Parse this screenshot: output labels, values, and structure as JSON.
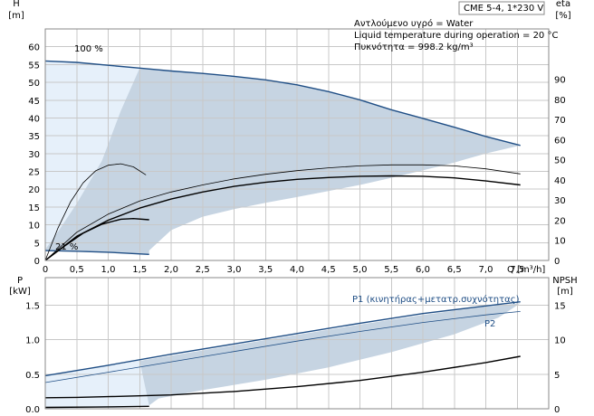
{
  "colors": {
    "band": "#c6d4e2",
    "band_light": "#e6f0fa",
    "curve_blue": "#1f4e85",
    "curve_black": "#000000",
    "grid": "#c8c8c8"
  },
  "info_box": {
    "title": "CME 5-4, 1*230 V",
    "lines": [
      "Αντλούμενο υγρό = Water",
      "Liquid temperature during operation = 20 °C",
      "Πυκνότητα = 998.2 kg/m³"
    ]
  },
  "chart_data": [
    {
      "type": "line",
      "panel": "head-efficiency",
      "x_title": "Q [m³/h]",
      "y_left_title": [
        "H",
        "[m]"
      ],
      "y_right_title": [
        "eta",
        "[%]"
      ],
      "xlim": [
        0,
        8
      ],
      "ylim_left": [
        0,
        65
      ],
      "ylim_right": [
        0,
        115
      ],
      "grid": true,
      "x_ticks": [
        0,
        0.5,
        1,
        1.5,
        2,
        2.5,
        3,
        3.5,
        4,
        4.5,
        5,
        5.5,
        6,
        6.5,
        7,
        7.5
      ],
      "x_tick_labels": [
        "0",
        "0,5",
        "1,0",
        "1,5",
        "2,0",
        "2,5",
        "3,0",
        "3,5",
        "4,0",
        "4,5",
        "5,0",
        "5,5",
        "6,0",
        "6,5",
        "7,0",
        "7,5"
      ],
      "y_left_ticks": [
        0,
        5,
        10,
        15,
        20,
        25,
        30,
        35,
        40,
        45,
        50,
        55,
        60
      ],
      "y_left_tick_labels": [
        "0",
        "5",
        "10",
        "15",
        "20",
        "25",
        "30",
        "35",
        "40",
        "45",
        "50",
        "55",
        "60"
      ],
      "y_right_ticks": [
        0,
        10,
        20,
        30,
        40,
        50,
        60,
        70,
        80,
        90
      ],
      "y_right_tick_labels": [
        "0",
        "10",
        "20",
        "30",
        "40",
        "50",
        "60",
        "70",
        "80",
        "90"
      ],
      "labels": {
        "max_speed": "100 %",
        "min_speed": "21 %"
      },
      "operating_range": {
        "upper": [
          [
            0,
            56
          ],
          [
            0.5,
            55.6
          ],
          [
            1.0,
            54.8
          ],
          [
            1.5,
            54
          ],
          [
            2.0,
            53.2
          ],
          [
            2.5,
            52.5
          ],
          [
            3.0,
            51.7
          ],
          [
            3.5,
            50.7
          ],
          [
            4.0,
            49.3
          ],
          [
            4.5,
            47.4
          ],
          [
            5.0,
            45.1
          ],
          [
            5.5,
            42.3
          ],
          [
            6.0,
            39.9
          ],
          [
            6.5,
            37.4
          ],
          [
            7.0,
            34.8
          ],
          [
            7.55,
            32.3
          ]
        ],
        "right": [
          [
            7.55,
            32.3
          ],
          [
            7.0,
            30
          ],
          [
            6.5,
            27.5
          ],
          [
            6.0,
            25.3
          ],
          [
            5.5,
            23.2
          ],
          [
            5.0,
            21.2
          ],
          [
            4.5,
            19.5
          ],
          [
            4.0,
            17.8
          ],
          [
            3.5,
            16.2
          ],
          [
            3.0,
            14.4
          ],
          [
            2.5,
            12.3
          ],
          [
            2.0,
            8.5
          ],
          [
            1.65,
            2.8
          ]
        ],
        "lower": [
          [
            1.65,
            2.8
          ],
          [
            1.65,
            1.6
          ],
          [
            1.2,
            2.2
          ],
          [
            0.5,
            2.8
          ],
          [
            0,
            3.1
          ]
        ],
        "light_wedge": [
          [
            0,
            56
          ],
          [
            1.5,
            54
          ],
          [
            1.2,
            42
          ],
          [
            0.9,
            28
          ],
          [
            0.5,
            16
          ],
          [
            0.2,
            8
          ],
          [
            0,
            3.1
          ]
        ]
      },
      "series": [
        {
          "color": "#1f4e85",
          "width": 1.4,
          "points": [
            [
              0,
              56
            ],
            [
              0.5,
              55.6
            ],
            [
              1.0,
              54.8
            ],
            [
              1.5,
              54
            ],
            [
              2.0,
              53.2
            ],
            [
              2.5,
              52.5
            ],
            [
              3.0,
              51.7
            ],
            [
              3.5,
              50.7
            ],
            [
              4.0,
              49.3
            ],
            [
              4.5,
              47.4
            ],
            [
              5.0,
              45.1
            ],
            [
              5.5,
              42.3
            ],
            [
              6.0,
              39.9
            ],
            [
              6.5,
              37.4
            ],
            [
              7.0,
              34.8
            ],
            [
              7.55,
              32.3
            ]
          ]
        },
        {
          "color": "#1f4e85",
          "width": 1.4,
          "points": [
            [
              0,
              2.8
            ],
            [
              0.5,
              2.6
            ],
            [
              1.0,
              2.3
            ],
            [
              1.65,
              1.7
            ]
          ]
        },
        {
          "color": "#000000",
          "width": 1.4,
          "axis": "right",
          "points": [
            [
              0,
              0
            ],
            [
              0.5,
              12
            ],
            [
              1.0,
              20
            ],
            [
              1.5,
              26
            ],
            [
              2.0,
              30.5
            ],
            [
              2.5,
              34
            ],
            [
              3.0,
              36.8
            ],
            [
              3.5,
              38.8
            ],
            [
              4.0,
              40.3
            ],
            [
              4.5,
              41.2
            ],
            [
              5.0,
              41.8
            ],
            [
              5.5,
              42
            ],
            [
              6.0,
              41.8
            ],
            [
              6.5,
              41
            ],
            [
              7.0,
              39.5
            ],
            [
              7.55,
              37.5
            ]
          ]
        },
        {
          "color": "#000000",
          "width": 0.8,
          "axis": "right",
          "points": [
            [
              0,
              0
            ],
            [
              0.5,
              14
            ],
            [
              1.0,
              23
            ],
            [
              1.5,
              29.5
            ],
            [
              2.0,
              34
            ],
            [
              2.5,
              37.5
            ],
            [
              3.0,
              40.5
            ],
            [
              3.5,
              42.8
            ],
            [
              4.0,
              44.6
            ],
            [
              4.5,
              46
            ],
            [
              5.0,
              47
            ],
            [
              5.5,
              47.5
            ],
            [
              6.0,
              47.5
            ],
            [
              6.5,
              47
            ],
            [
              7.0,
              45.5
            ],
            [
              7.55,
              43
            ]
          ]
        },
        {
          "color": "#000000",
          "width": 1.4,
          "axis": "right",
          "points": [
            [
              0,
              0
            ],
            [
              0.3,
              7
            ],
            [
              0.6,
              13.5
            ],
            [
              0.9,
              18
            ],
            [
              1.2,
              20.5
            ],
            [
              1.4,
              20.8
            ],
            [
              1.65,
              20.2
            ]
          ]
        },
        {
          "color": "#000000",
          "width": 0.8,
          "axis": "right",
          "points": [
            [
              0,
              0
            ],
            [
              0.2,
              16
            ],
            [
              0.4,
              29
            ],
            [
              0.6,
              38.5
            ],
            [
              0.8,
              44.5
            ],
            [
              1.0,
              47.3
            ],
            [
              1.2,
              48
            ],
            [
              1.4,
              46.5
            ],
            [
              1.6,
              42.5
            ]
          ]
        }
      ]
    },
    {
      "type": "line",
      "panel": "power-npsh",
      "y_left_title": [
        "P",
        "[kW]"
      ],
      "y_right_title": [
        "NPSH",
        "[m]"
      ],
      "xlim": [
        0,
        8
      ],
      "ylim_left": [
        0,
        1.9
      ],
      "ylim_right": [
        0,
        19
      ],
      "grid": true,
      "y_left_ticks": [
        0,
        0.5,
        1.0,
        1.5
      ],
      "y_left_tick_labels": [
        "0.0",
        "0.5",
        "1.0",
        "1.5"
      ],
      "y_right_ticks": [
        0,
        5,
        10,
        15
      ],
      "y_right_tick_labels": [
        "0",
        "5",
        "10",
        "15"
      ],
      "operating_range": {
        "polygon": [
          [
            0,
            0
          ],
          [
            0,
            0.47
          ],
          [
            1.0,
            0.62
          ],
          [
            2.0,
            0.77
          ],
          [
            3.0,
            0.92
          ],
          [
            4.0,
            1.07
          ],
          [
            5.0,
            1.22
          ],
          [
            6.0,
            1.36
          ],
          [
            7.0,
            1.48
          ],
          [
            7.55,
            1.53
          ],
          [
            7.2,
            1.32
          ],
          [
            6.5,
            1.08
          ],
          [
            5.5,
            0.82
          ],
          [
            4.5,
            0.6
          ],
          [
            3.5,
            0.42
          ],
          [
            2.5,
            0.27
          ],
          [
            1.8,
            0.15
          ],
          [
            1.65,
            0.05
          ],
          [
            1.4,
            0.02
          ],
          [
            0.5,
            0.01
          ]
        ],
        "light_wedge": [
          [
            0,
            0
          ],
          [
            0,
            0.47
          ],
          [
            1.0,
            0.62
          ],
          [
            1.5,
            0.69
          ],
          [
            1.65,
            0.05
          ],
          [
            1.4,
            0.02
          ],
          [
            0.5,
            0.01
          ]
        ]
      },
      "series": [
        {
          "name": "P1 (κινητήρας+μετατρ.συχνότητας)",
          "color": "#1f4e85",
          "width": 1.4,
          "points": [
            [
              0,
              0.48
            ],
            [
              1.0,
              0.63
            ],
            [
              2.0,
              0.79
            ],
            [
              3.0,
              0.94
            ],
            [
              4.0,
              1.09
            ],
            [
              5.0,
              1.24
            ],
            [
              6.0,
              1.38
            ],
            [
              7.0,
              1.49
            ],
            [
              7.55,
              1.55
            ]
          ]
        },
        {
          "name": "P2",
          "color": "#1f4e85",
          "width": 0.8,
          "points": [
            [
              0,
              0.38
            ],
            [
              1.0,
              0.53
            ],
            [
              2.0,
              0.68
            ],
            [
              3.0,
              0.83
            ],
            [
              4.0,
              0.98
            ],
            [
              5.0,
              1.12
            ],
            [
              6.0,
              1.25
            ],
            [
              7.0,
              1.36
            ],
            [
              7.55,
              1.41
            ]
          ]
        },
        {
          "color": "#000000",
          "width": 1.4,
          "axis": "right",
          "points": [
            [
              0,
              1.6
            ],
            [
              0.5,
              1.65
            ],
            [
              1.0,
              1.75
            ],
            [
              2.0,
              2.0
            ],
            [
              3.0,
              2.5
            ],
            [
              4.0,
              3.2
            ],
            [
              5.0,
              4.1
            ],
            [
              6.0,
              5.3
            ],
            [
              7.0,
              6.7
            ],
            [
              7.55,
              7.6
            ]
          ]
        },
        {
          "color": "#000000",
          "width": 1.4,
          "points": [
            [
              0,
              0.02
            ],
            [
              0.8,
              0.025
            ],
            [
              1.65,
              0.035
            ]
          ]
        }
      ]
    }
  ]
}
